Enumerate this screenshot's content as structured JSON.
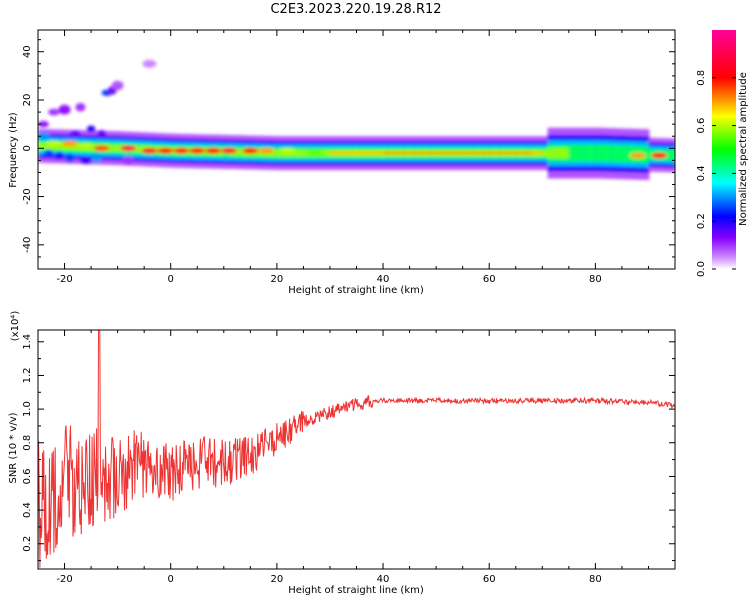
{
  "title": "C2E3.2023.220.19.28.R12",
  "chart_data": [
    {
      "type": "heatmap",
      "xlabel": "Height of straight line (km)",
      "ylabel": "Frequency (Hz)",
      "xlim": [
        -25,
        95
      ],
      "ylim": [
        -50,
        49
      ],
      "xticks": [
        "-20",
        "0",
        "20",
        "40",
        "60",
        "80"
      ],
      "yticks": [
        "-40",
        "-20",
        "0",
        "20",
        "40"
      ],
      "colorbar": {
        "label": "Normalized spectral amplitude",
        "range": [
          0,
          1
        ],
        "ticks": [
          "0.0",
          "0.2",
          "0.4",
          "0.6",
          "0.8"
        ],
        "colors": [
          "#ffffff",
          "#9900ff",
          "#0000ff",
          "#00ffff",
          "#00ff00",
          "#ffff00",
          "#ff0000",
          "#ff00aa"
        ]
      },
      "ridge": {
        "description_free": true,
        "x": [
          -25,
          -10,
          0,
          20,
          40,
          60,
          80,
          95
        ],
        "frequency": [
          1,
          0,
          -1,
          -2,
          -2,
          -2,
          -2,
          -3
        ]
      }
    },
    {
      "type": "line",
      "xlabel": "Height of straight line (km)",
      "ylabel": "SNR (10 * v/v)",
      "yscale_label": "(x10⁴)",
      "xlim": [
        -25,
        95
      ],
      "ylim": [
        0.05,
        1.47
      ],
      "xticks": [
        "-20",
        "0",
        "20",
        "40",
        "60",
        "80"
      ],
      "yticks": [
        "0.2",
        "0.4",
        "0.6",
        "0.8",
        "1.0",
        "1.2",
        "1.4"
      ],
      "color": "#ee3333",
      "trend_x": [
        -25,
        -20,
        -15,
        -10,
        -5,
        0,
        5,
        10,
        15,
        20,
        25,
        30,
        35,
        40,
        50,
        60,
        70,
        80,
        90,
        95
      ],
      "trend_y": [
        0.45,
        0.55,
        0.58,
        0.6,
        0.68,
        0.62,
        0.68,
        0.68,
        0.72,
        0.82,
        0.92,
        0.98,
        1.03,
        1.05,
        1.05,
        1.05,
        1.05,
        1.05,
        1.04,
        1.02
      ],
      "peak_x": -13.5,
      "peak_y": 1.47
    }
  ]
}
